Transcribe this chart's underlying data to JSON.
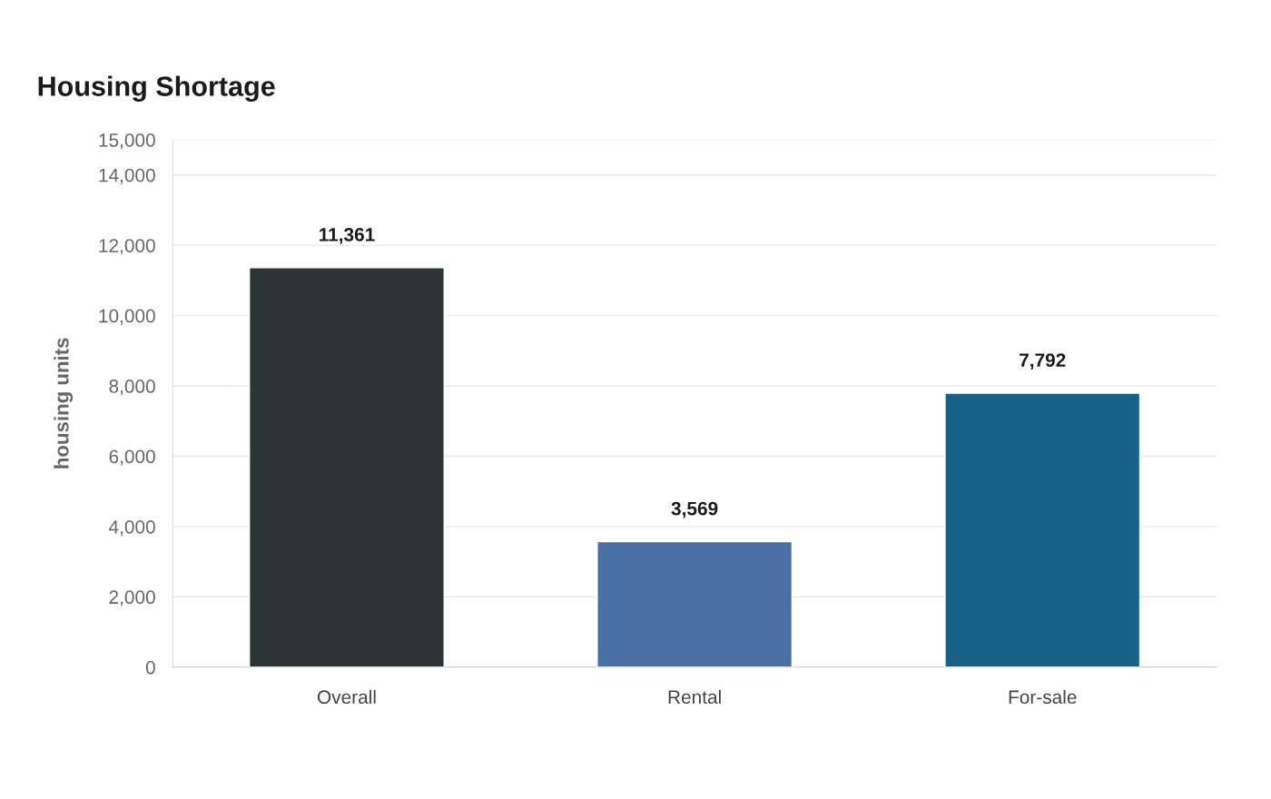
{
  "chart_data": {
    "type": "bar",
    "title": "Housing Shortage",
    "ylabel": "housing units",
    "categories": [
      "Overall",
      "Rental",
      "For-sale"
    ],
    "values": [
      11361,
      3569,
      7792
    ],
    "colors": [
      "#2d3436",
      "#4a6fa5",
      "#176087"
    ],
    "value_labels": [
      "11,361",
      "3,569",
      "7,792"
    ],
    "ylim": [
      0,
      15000
    ],
    "yticks": [
      {
        "value": 0,
        "label": "0"
      },
      {
        "value": 2000,
        "label": "2,000"
      },
      {
        "value": 4000,
        "label": "4,000"
      },
      {
        "value": 6000,
        "label": "6,000"
      },
      {
        "value": 8000,
        "label": "8,000"
      },
      {
        "value": 10000,
        "label": "10,000"
      },
      {
        "value": 12000,
        "label": "12,000"
      },
      {
        "value": 14000,
        "label": "14,000"
      },
      {
        "value": 15000,
        "label": "15,000"
      }
    ],
    "grid": "y"
  }
}
